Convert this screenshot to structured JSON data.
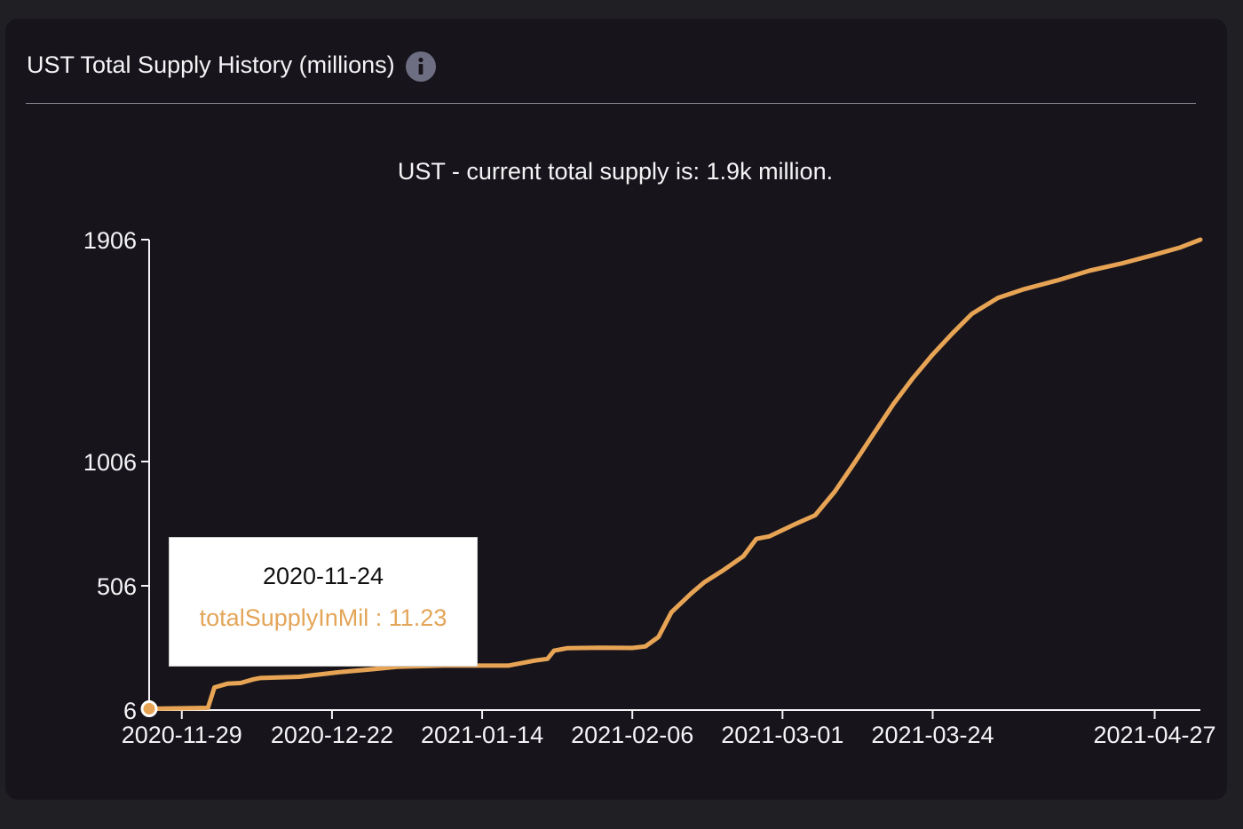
{
  "panel": {
    "title": "UST Total Supply History (millions)",
    "info_icon": "info-icon"
  },
  "colors": {
    "background": "#202024",
    "card": "#17151b",
    "line": "#e8a455",
    "text": "#f4f4f6",
    "axis": "#f4f4f6",
    "info_icon": "#6e6e82"
  },
  "tooltip": {
    "date": "2020-11-24",
    "series_label": "totalSupplyInMil",
    "separator": " : ",
    "value": "11.23"
  },
  "chart_data": {
    "type": "line",
    "title": "UST - current total supply is: 1.9k million.",
    "xlabel": "",
    "ylabel": "",
    "x_start": "2020-11-24",
    "x_end": "2021-05-04",
    "ylim": [
      6,
      1906
    ],
    "x_ticks": [
      "2020-11-29",
      "2020-12-22",
      "2021-01-14",
      "2021-02-06",
      "2021-03-01",
      "2021-03-24",
      "2021-04-27"
    ],
    "y_ticks": [
      6,
      506,
      1006,
      1906
    ],
    "grid": false,
    "legend": "none",
    "series": [
      {
        "x": [
          "2020-11-24",
          "2020-12-03",
          "2020-12-04",
          "2020-12-06",
          "2020-12-08",
          "2020-12-10",
          "2020-12-11",
          "2020-12-17",
          "2020-12-23",
          "2020-12-28",
          "2021-01-01",
          "2021-01-08",
          "2021-01-14",
          "2021-01-18",
          "2021-01-22",
          "2021-01-24",
          "2021-01-25",
          "2021-01-27",
          "2021-02-01",
          "2021-02-06",
          "2021-02-08",
          "2021-02-10",
          "2021-02-12",
          "2021-02-15",
          "2021-02-17",
          "2021-02-20",
          "2021-02-23",
          "2021-02-25",
          "2021-02-27",
          "2021-03-03",
          "2021-03-06",
          "2021-03-09",
          "2021-03-12",
          "2021-03-15",
          "2021-03-18",
          "2021-03-21",
          "2021-03-24",
          "2021-03-27",
          "2021-03-30",
          "2021-04-03",
          "2021-04-07",
          "2021-04-12",
          "2021-04-17",
          "2021-04-22",
          "2021-04-27",
          "2021-05-01",
          "2021-05-04"
        ],
        "values": [
          11.23,
          15,
          97,
          112,
          115,
          130,
          135,
          140,
          158,
          170,
          180,
          185,
          185,
          185,
          205,
          212,
          245,
          255,
          257,
          256,
          262,
          300,
          400,
          475,
          520,
          570,
          625,
          695,
          705,
          755,
          790,
          885,
          1000,
          1120,
          1240,
          1345,
          1440,
          1525,
          1605,
          1670,
          1705,
          1740,
          1780,
          1810,
          1845,
          1875,
          1906
        ]
      }
    ]
  }
}
